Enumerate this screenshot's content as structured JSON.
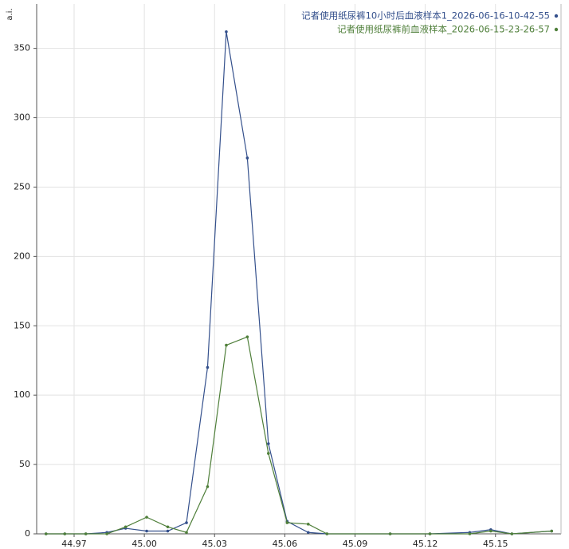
{
  "chart_data": {
    "type": "line",
    "y_label": "a.i.",
    "x": [
      44.958,
      44.966,
      44.975,
      44.984,
      44.992,
      45.001,
      45.01,
      45.018,
      45.027,
      45.035,
      45.044,
      45.053,
      45.061,
      45.07,
      45.078,
      45.105,
      45.122,
      45.139,
      45.148,
      45.157,
      45.174
    ],
    "series": [
      {
        "name": "记者使用纸尿裤10小时后血液样本1_2026-06-16-10-42-55",
        "color": "#34508c",
        "values": [
          0,
          0,
          0,
          1,
          4,
          2,
          2,
          8,
          120,
          362,
          271,
          65,
          9,
          1,
          0,
          0,
          0,
          1,
          3,
          0,
          2
        ]
      },
      {
        "name": "记者使用纸尿裤前血液样本_2026-06-15-23-26-57",
        "color": "#4f7f3a",
        "values": [
          0,
          0,
          0,
          0,
          5,
          12,
          5,
          1,
          34,
          136,
          142,
          58,
          8,
          7,
          0,
          0,
          0,
          0,
          2,
          0,
          2
        ]
      }
    ],
    "xlim": [
      44.954,
      45.178
    ],
    "ylim": [
      0,
      382
    ],
    "xticks": [
      44.97,
      {
        "value": 45,
        "label": "45.00"
      },
      45.03,
      45.06,
      45.09,
      45.12,
      45.15
    ],
    "yticks": [
      0,
      50,
      100,
      150,
      200,
      250,
      300,
      350
    ],
    "grid": true,
    "legend": "top-right"
  }
}
